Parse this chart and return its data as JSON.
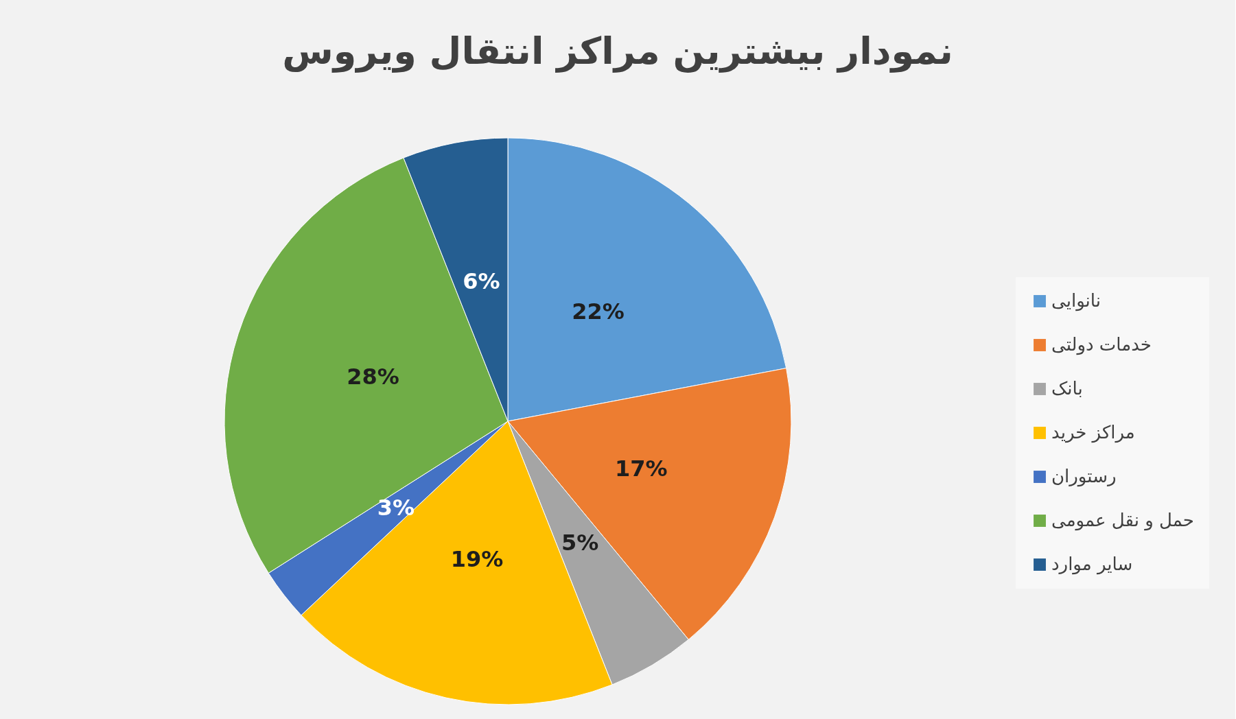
{
  "chart_data": {
    "type": "pie",
    "title": "نمودار بیشترین مراکز انتقال ویروس",
    "categories": [
      "نانوایی",
      "خدمات دولتی",
      "بانک",
      "مراکز خرید",
      "رستوران",
      "حمل و نقل عمومی",
      "سایر موارد"
    ],
    "values": [
      22,
      17,
      5,
      19,
      3,
      28,
      6
    ],
    "colors": [
      "#5b9bd5",
      "#ed7d31",
      "#a5a5a5",
      "#ffc000",
      "#4472c4",
      "#70ad47",
      "#255e91"
    ],
    "value_labels": [
      "22%",
      "17%",
      "5%",
      "19%",
      "3%",
      "28%",
      "6%"
    ],
    "legend": "right"
  }
}
